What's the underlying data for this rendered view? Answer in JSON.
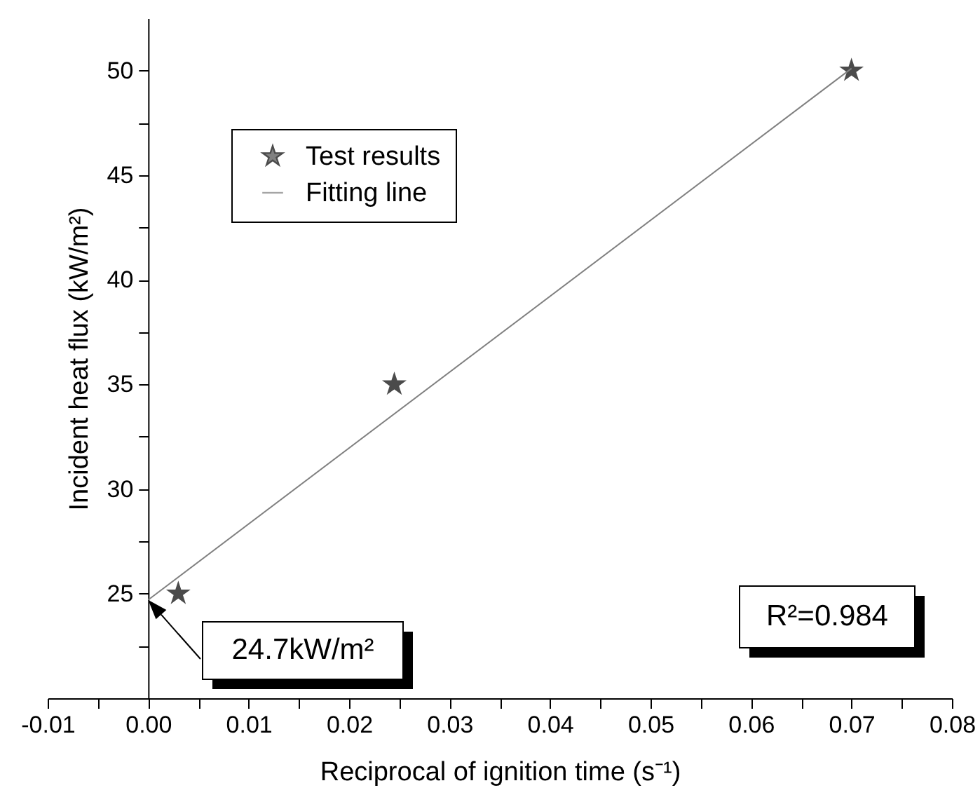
{
  "chart_data": {
    "type": "scatter",
    "xlabel": "Reciprocal of ignition time (s⁻¹)",
    "ylabel": "Incident heat flux (kW/m²)",
    "xlim": [
      -0.01,
      0.08
    ],
    "xticks": [
      {
        "value": -0.01,
        "label": "-0.01"
      },
      {
        "value": -0.005,
        "label": null
      },
      {
        "value": 0,
        "label": "0.00"
      },
      {
        "value": 0.005,
        "label": null
      },
      {
        "value": 0.01,
        "label": "0.01"
      },
      {
        "value": 0.015,
        "label": null
      },
      {
        "value": 0.02,
        "label": "0.02"
      },
      {
        "value": 0.025,
        "label": null
      },
      {
        "value": 0.03,
        "label": "0.03"
      },
      {
        "value": 0.035,
        "label": null
      },
      {
        "value": 0.04,
        "label": "0.04"
      },
      {
        "value": 0.045,
        "label": null
      },
      {
        "value": 0.05,
        "label": "0.05"
      },
      {
        "value": 0.055,
        "label": null
      },
      {
        "value": 0.06,
        "label": "0.06"
      },
      {
        "value": 0.065,
        "label": null
      },
      {
        "value": 0.07,
        "label": "0.07"
      },
      {
        "value": 0.075,
        "label": null
      },
      {
        "value": 0.08,
        "label": "0.08"
      }
    ],
    "ylim": [
      20,
      52.5
    ],
    "yticks": [
      {
        "value": 22.5,
        "label": null
      },
      25,
      {
        "value": 27.5,
        "label": null
      },
      30,
      {
        "value": 32.5,
        "label": null
      },
      35,
      {
        "value": 37.5,
        "label": null
      },
      40,
      {
        "value": 42.5,
        "label": null
      },
      45,
      {
        "value": 47.5,
        "label": null
      },
      50
    ],
    "grid": false,
    "legend": "top left",
    "line_style": "solid",
    "series": [
      {
        "name": "Test results",
        "marker": "star",
        "color": "#000000",
        "x": [
          0.003,
          0.0245,
          0.07
        ],
        "values": [
          25,
          35,
          50
        ]
      },
      {
        "name": "Fitting line",
        "type": "line",
        "color": "#808080",
        "x": [
          0,
          0.07
        ],
        "values": [
          24.7,
          50.1
        ]
      }
    ],
    "annotations": [
      "24.7kW/m²",
      "R²=0.984"
    ]
  }
}
